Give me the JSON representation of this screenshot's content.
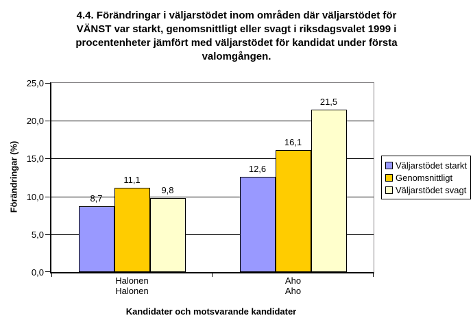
{
  "title_lines": [
    "4.4. Förändringar i väljarstödet inom områden där väljarstödet för",
    "VÄNST var starkt, genomsnittligt eller svagt i riksdagsvalet 1999 i",
    "procentenheter jämfört med väljarstödet för kandidat under första",
    "valomgången."
  ],
  "chart_data": {
    "type": "bar",
    "title": "4.4. Förändringar i väljarstödet inom områden där väljarstödet för VÄNST var starkt, genomsnittligt eller svagt i riksdagsvalet 1999 i procentenheter jämfört med väljarstödet för kandidat under första valomgången.",
    "categories": [
      [
        "Halonen",
        "Halonen"
      ],
      [
        "Aho",
        "Aho"
      ]
    ],
    "series": [
      {
        "name": "Väljarstödet starkt",
        "color": "#9999FF",
        "values": [
          8.7,
          12.6
        ]
      },
      {
        "name": "Genomsnittligt",
        "color": "#FFCC00",
        "values": [
          11.1,
          16.1
        ]
      },
      {
        "name": "Väljarstödet svagt",
        "color": "#FFFFCC",
        "values": [
          9.8,
          21.5
        ]
      }
    ],
    "value_labels": [
      [
        "8,7",
        "12,6"
      ],
      [
        "11,1",
        "16,1"
      ],
      [
        "9,8",
        "21,5"
      ]
    ],
    "xlabel": "Kandidater och motsvarande kandidater",
    "ylabel": "Förändringar (%)",
    "ylim": [
      0,
      25
    ],
    "y_ticks": [
      0,
      5,
      10,
      15,
      20,
      25
    ],
    "y_tick_labels": [
      "0,0",
      "5,0",
      "10,0",
      "15,0",
      "20,0",
      "25,0"
    ],
    "grid": true,
    "legend_position": "right",
    "colors": {
      "bar_border": "#000000",
      "gridline": "#000000",
      "plot_outer_border": "#848284",
      "axis": "#000000",
      "background": "#FFFFFF"
    }
  }
}
